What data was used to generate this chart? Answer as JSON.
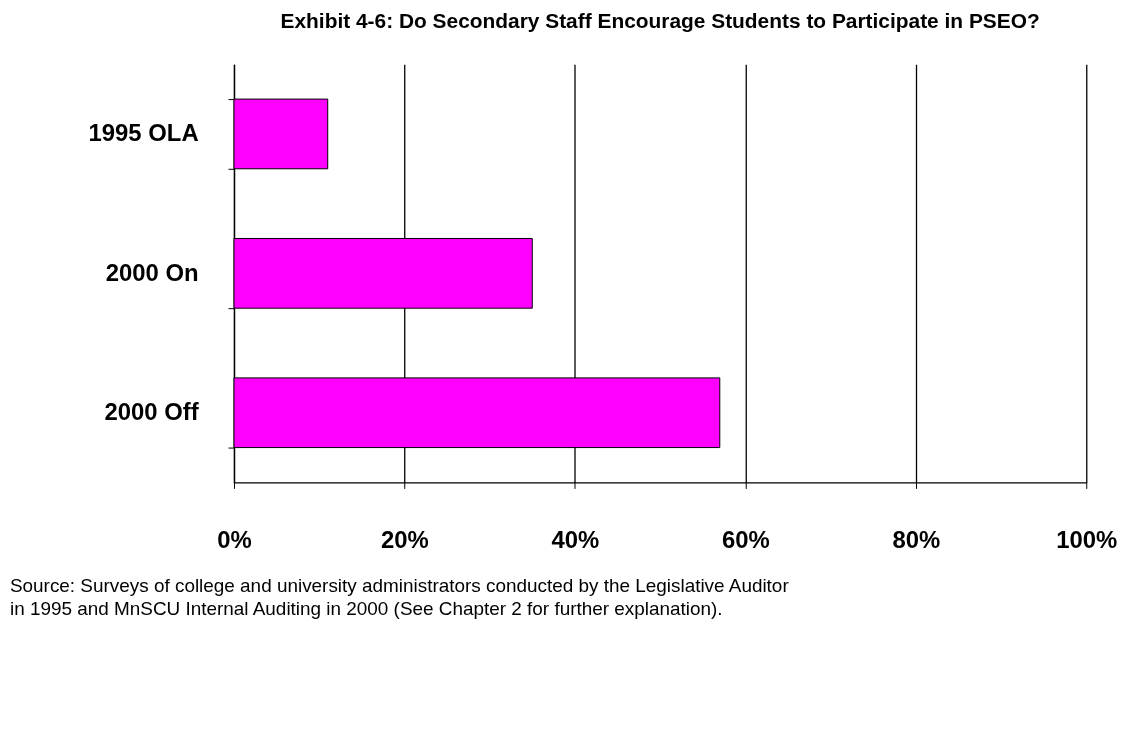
{
  "chart_data": {
    "type": "bar",
    "orientation": "horizontal",
    "title": "Exhibit 4-6:  Do Secondary Staff Encourage Students to Participate in PSEO?",
    "categories": [
      "1995 OLA",
      "2000 On",
      "2000 Off"
    ],
    "values": [
      11,
      35,
      57
    ],
    "color": "#ff00ff",
    "xlim": [
      0,
      100
    ],
    "xticks": [
      {
        "value": 0,
        "label": "0%"
      },
      {
        "value": 20,
        "label": "20%"
      },
      {
        "value": 40,
        "label": "40%"
      },
      {
        "value": 60,
        "label": "60%"
      },
      {
        "value": 80,
        "label": "80%"
      },
      {
        "value": 100,
        "label": "100%"
      }
    ],
    "grid": "x",
    "annotations": [
      "Source:  Surveys of college and university administrators conducted by the Legislative Auditor in 1995 and MnSCU Internal Auditing in 2000 (See Chapter 2 for further explanation)."
    ]
  }
}
